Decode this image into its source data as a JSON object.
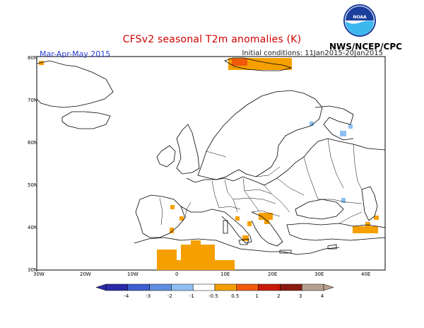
{
  "title": "CFSv2 seasonal T2m anomalies (K)",
  "period": "Mar-Apr-May 2015",
  "init_conditions": "Initial conditions: 11Jan2015-20Jan2015",
  "agency": "NWS/NCEP/CPC",
  "logo_text": "NOAA",
  "map": {
    "lat_ticks": [
      "80N",
      "70N",
      "60N",
      "50N",
      "40N",
      "30N"
    ],
    "lon_ticks": [
      "30W",
      "20W",
      "10W",
      "0",
      "10E",
      "20E",
      "30E",
      "40E"
    ],
    "extent": {
      "lon_min": -30,
      "lon_max": 45,
      "lat_min": 30,
      "lat_max": 80
    }
  },
  "colorbar": {
    "labels": [
      "-4",
      "-3",
      "-2",
      "-1",
      "-0.5",
      "0.5",
      "1",
      "2",
      "3",
      "4"
    ],
    "colors": [
      "#2b2ba8",
      "#3f5fd0",
      "#5e8fe0",
      "#8fbff2",
      "#ffffff",
      "#f5a000",
      "#f05a0a",
      "#c81a0a",
      "#8b1a10",
      "#b8a090"
    ]
  },
  "anomaly_colors": {
    "warm_light": "#f5a000",
    "warm_strong": "#f05a0a",
    "cool": "#8fbff2"
  }
}
